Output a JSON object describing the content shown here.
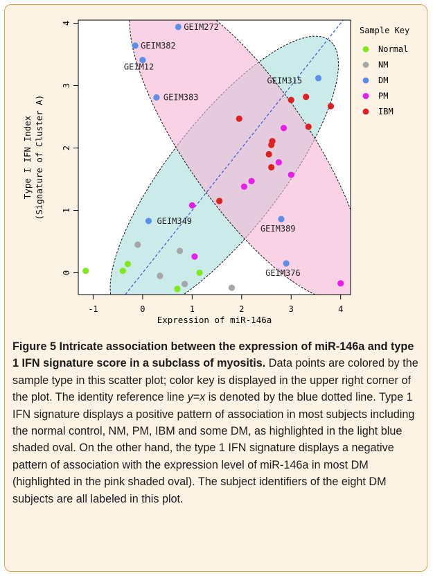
{
  "figure": {
    "label": "Figure 5",
    "title": "Intricate association between the expression of miR-146a and type 1 IFN signature score in a subclass of myositis.",
    "caption_before_eq": "Data points are colored by the sample type in this scatter plot; color key is displayed in the upper right corner of the plot. The identity reference line ",
    "caption_eq": "y=x",
    "caption_after_eq": " is denoted by the blue dotted line. Type 1 IFN signature displays a positive pattern of association in most subjects including the normal control, NM, PM, IBM and some DM, as highlighted in the light blue shaded oval. On the other hand, the type 1 IFN signature displays a negative pattern of association with the expression level of miR-146a in most DM (highlighted in the pink shaded oval). The subject identifiers of the eight DM subjects are all labeled in this plot."
  },
  "chart_data": {
    "type": "scatter",
    "xlabel": "Expression of miR-146a",
    "ylabel_line1": "Type I IFN Index",
    "ylabel_line2": "(Signature of Cluster A)",
    "xlim": [
      -1.3,
      4.2
    ],
    "ylim": [
      -0.35,
      4.05
    ],
    "xticks": [
      -1,
      0,
      1,
      2,
      3,
      4
    ],
    "yticks": [
      0,
      1,
      2,
      3,
      4
    ],
    "grid": false,
    "reference_line": {
      "label": "y=x",
      "color": "#3a52d9",
      "style": "dotted"
    },
    "ellipses": [
      {
        "name": "positive association",
        "color": "#a8dcdc",
        "center": [
          1.65,
          1.55
        ],
        "semi_axes": [
          3.05,
          1.02
        ],
        "angle_deg": 44
      },
      {
        "name": "negative association",
        "color": "#f5b5d3",
        "center": [
          2.1,
          2.05
        ],
        "semi_axes": [
          3.25,
          1.12
        ],
        "angle_deg": -47
      }
    ],
    "legend": {
      "title": "Sample Key",
      "placement": "top-right",
      "entries": [
        {
          "label": "Normal",
          "color": "#80e81c"
        },
        {
          "label": "NM",
          "color": "#a6a6a6"
        },
        {
          "label": "DM",
          "color": "#5b8fe8"
        },
        {
          "label": "PM",
          "color": "#e81ee8"
        },
        {
          "label": "IBM",
          "color": "#df2020"
        }
      ]
    },
    "series": [
      {
        "name": "Normal",
        "points": [
          [
            -1.15,
            0.03
          ],
          [
            -0.4,
            0.03
          ],
          [
            -0.3,
            0.14
          ],
          [
            0.7,
            -0.26
          ],
          [
            1.15,
            0.0
          ]
        ]
      },
      {
        "name": "NM",
        "points": [
          [
            -0.1,
            0.45
          ],
          [
            0.35,
            -0.05
          ],
          [
            0.75,
            0.35
          ],
          [
            0.85,
            -0.18
          ],
          [
            1.8,
            -0.24
          ]
        ]
      },
      {
        "name": "DM",
        "points": [
          [
            0.72,
            3.94
          ],
          [
            -0.15,
            3.64
          ],
          [
            0.0,
            3.41
          ],
          [
            0.28,
            2.81
          ],
          [
            3.55,
            3.12
          ],
          [
            0.12,
            0.83
          ],
          [
            2.8,
            0.86
          ],
          [
            2.9,
            0.15
          ]
        ]
      },
      {
        "name": "PM",
        "points": [
          [
            1.05,
            0.26
          ],
          [
            1.0,
            1.08
          ],
          [
            2.05,
            1.38
          ],
          [
            2.2,
            1.47
          ],
          [
            2.75,
            1.77
          ],
          [
            2.85,
            2.32
          ],
          [
            3.0,
            1.57
          ],
          [
            4.0,
            -0.17
          ]
        ]
      },
      {
        "name": "IBM",
        "points": [
          [
            1.55,
            1.15
          ],
          [
            1.95,
            2.47
          ],
          [
            2.55,
            1.9
          ],
          [
            2.6,
            2.05
          ],
          [
            2.62,
            2.11
          ],
          [
            2.6,
            1.69
          ],
          [
            3.0,
            2.77
          ],
          [
            3.3,
            2.82
          ],
          [
            3.35,
            2.34
          ],
          [
            3.8,
            2.67
          ]
        ]
      }
    ],
    "point_labels": [
      {
        "text": "GEIM272",
        "x": 0.72,
        "y": 3.94
      },
      {
        "text": "GEIM382",
        "x": -0.15,
        "y": 3.64
      },
      {
        "text": "GEIM12",
        "x": 0.0,
        "y": 3.41
      },
      {
        "text": "GEIM383",
        "x": 0.28,
        "y": 2.81
      },
      {
        "text": "GEIM315",
        "x": 3.55,
        "y": 3.12
      },
      {
        "text": "GEIM349",
        "x": 0.12,
        "y": 0.83
      },
      {
        "text": "GEIM389",
        "x": 2.8,
        "y": 0.86
      },
      {
        "text": "GEIM376",
        "x": 2.9,
        "y": 0.15
      }
    ]
  }
}
